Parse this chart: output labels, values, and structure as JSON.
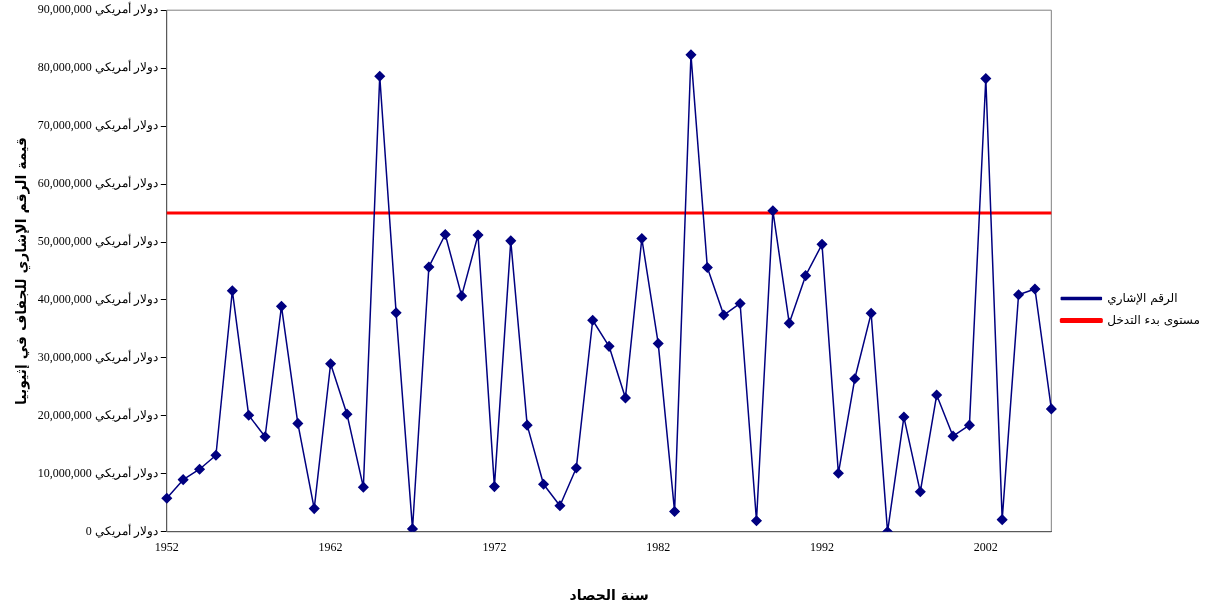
{
  "chart_data": {
    "type": "line",
    "xlabel": "سنة الحصاد",
    "ylabel": "قيمة الرقم الإشاري للجفاف في إثيوبيا",
    "categories": [
      "1952",
      null,
      null,
      null,
      null,
      null,
      null,
      null,
      null,
      null,
      "1962",
      null,
      null,
      null,
      null,
      null,
      null,
      null,
      null,
      null,
      "1972",
      null,
      null,
      null,
      null,
      null,
      null,
      null,
      null,
      null,
      "1982",
      null,
      null,
      null,
      null,
      null,
      null,
      null,
      null,
      null,
      "1992",
      null,
      null,
      null,
      null,
      null,
      null,
      null,
      null,
      null,
      "2002",
      null,
      null,
      null,
      null
    ],
    "series": [
      {
        "name": "الرقم الإشاري",
        "color": "#000080",
        "values": [
          5800000,
          9000000,
          10800000,
          13200000,
          41600000,
          20100000,
          16400000,
          38900000,
          18700000,
          4000000,
          29000000,
          20300000,
          7700000,
          78600000,
          37800000,
          500000,
          45700000,
          51300000,
          40700000,
          51200000,
          7800000,
          50200000,
          18400000,
          8200000,
          4500000,
          11000000,
          36500000,
          32000000,
          23100000,
          50600000,
          32500000,
          3500000,
          82300000,
          45600000,
          37400000,
          39400000,
          1900000,
          55400000,
          36000000,
          44200000,
          49600000,
          10100000,
          26400000,
          37700000,
          0,
          19800000,
          6900000,
          23600000,
          16500000,
          18400000,
          78200000,
          2100000,
          40900000,
          41900000,
          21200000
        ]
      },
      {
        "name": "مستوى بدء التدخل",
        "color": "#ff0000",
        "marker": "none",
        "values": [
          55000000,
          55000000,
          55000000,
          55000000,
          55000000,
          55000000,
          55000000,
          55000000,
          55000000,
          55000000,
          55000000,
          55000000,
          55000000,
          55000000,
          55000000,
          55000000,
          55000000,
          55000000,
          55000000,
          55000000,
          55000000,
          55000000,
          55000000,
          55000000,
          55000000,
          55000000,
          55000000,
          55000000,
          55000000,
          55000000,
          55000000,
          55000000,
          55000000,
          55000000,
          55000000,
          55000000,
          55000000,
          55000000,
          55000000,
          55000000,
          55000000,
          55000000,
          55000000,
          55000000,
          55000000,
          55000000,
          55000000,
          55000000,
          55000000,
          55000000,
          55000000,
          55000000,
          55000000,
          55000000,
          55000000
        ]
      }
    ],
    "ylim": [
      0,
      90000000
    ],
    "yticks": [
      {
        "value": 0,
        "label": "0 دولار أمريكي"
      },
      {
        "value": 10000000,
        "label": "10,000,000 دولار أمريكي"
      },
      {
        "value": 20000000,
        "label": "20,000,000 دولار أمريكي"
      },
      {
        "value": 30000000,
        "label": "30,000,000 دولار أمريكي"
      },
      {
        "value": 40000000,
        "label": "40,000,000 دولار أمريكي"
      },
      {
        "value": 50000000,
        "label": "50,000,000 دولار أمريكي"
      },
      {
        "value": 60000000,
        "label": "60,000,000 دولار أمريكي"
      },
      {
        "value": 70000000,
        "label": "70,000,000 دولار أمريكي"
      },
      {
        "value": 80000000,
        "label": "80,000,000 دولار أمريكي"
      },
      {
        "value": 90000000,
        "label": "90,000,000 دولار أمريكي"
      }
    ],
    "grid": false,
    "legend": "right",
    "marker": "diamond",
    "line_style": "solid"
  }
}
